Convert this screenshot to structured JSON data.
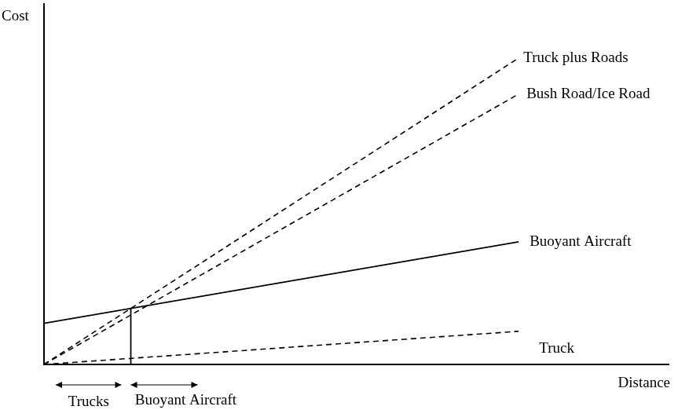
{
  "chart_data": {
    "type": "line",
    "x_label": "Distance",
    "y_label": "Cost",
    "x": [
      0,
      76
    ],
    "xlim": [
      0,
      100
    ],
    "ylim": [
      0,
      100
    ],
    "tick_labels": false,
    "grid": false,
    "series": [
      {
        "name": "Truck plus Roads",
        "color": "#000000",
        "line_style": "dashed",
        "values": [
          0,
          85
        ]
      },
      {
        "name": "Bush Road/Ice Road",
        "color": "#000000",
        "line_style": "dashed",
        "values": [
          0,
          75
        ]
      },
      {
        "name": "Buoyant Aircraft",
        "color": "#000000",
        "line_style": "solid",
        "values": [
          11.4,
          34
        ]
      },
      {
        "name": "Truck",
        "color": "#000000",
        "line_style": "dashed",
        "values": [
          0,
          9.2
        ]
      }
    ],
    "divider": {
      "x": 13.9,
      "y": 15.5
    },
    "region_labels": [
      "Trucks",
      "Buoyant Aircraft"
    ]
  }
}
